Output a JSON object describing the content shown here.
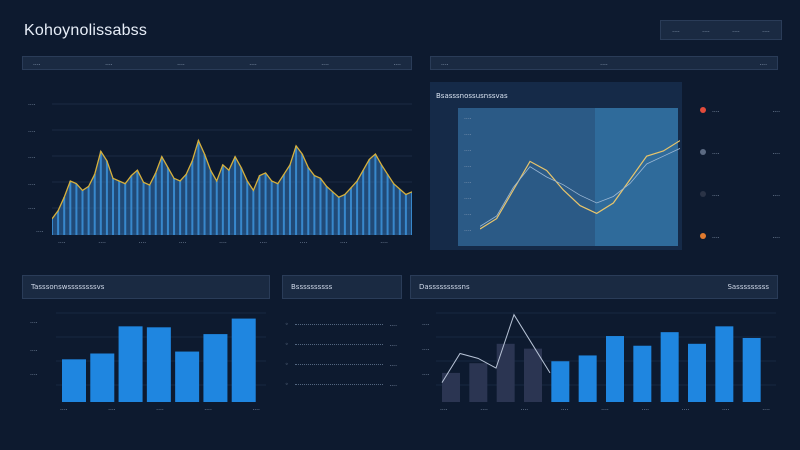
{
  "app": {
    "title": "Kohoynolissabss",
    "nav": [
      "....",
      "....",
      "....",
      "...."
    ]
  },
  "area_panel": {
    "tabs": [
      "....",
      "....",
      "....",
      "....",
      "....",
      "...."
    ],
    "y_ticks": [
      "....",
      "....",
      "....",
      "....",
      "....",
      "...."
    ],
    "x_ticks": [
      "....",
      "....",
      "....",
      "....",
      "....",
      "....",
      "....",
      "....",
      "...."
    ]
  },
  "right_panel": {
    "tabs": [
      "....",
      "....",
      "...."
    ],
    "header": "Bsasssnossusnssvas",
    "y_ticks": [
      "....",
      "....",
      "....",
      "....",
      "....",
      "....",
      "....",
      "...."
    ],
    "legend": [
      {
        "label": "....",
        "value": "....",
        "color": "#e24b3b"
      },
      {
        "label": "....",
        "value": "....",
        "color": "#5b6a82"
      },
      {
        "label": "....",
        "value": "....",
        "color": "#2a3346"
      },
      {
        "label": "....",
        "value": "....",
        "color": "#e07a2e"
      }
    ]
  },
  "bottom_left": {
    "header": "Tasssonswssssssssvs",
    "y_ticks": [
      "....",
      "....",
      "...."
    ],
    "x_ticks": [
      "....",
      "....",
      "....",
      "....",
      "...."
    ]
  },
  "bottom_middle": {
    "header": "Bssssssssss",
    "rows": [
      "....",
      "....",
      "....",
      "...."
    ]
  },
  "bottom_right": {
    "header": "Dasssssssssns",
    "header_right": "Sasssssssss",
    "y_ticks": [
      "....",
      "....",
      "...."
    ],
    "x_ticks": [
      "....",
      "....",
      "....",
      "....",
      "....",
      "....",
      "....",
      "....",
      "...."
    ]
  },
  "chart_data": [
    {
      "type": "area",
      "title": "",
      "xlabel": "",
      "ylabel": "",
      "ylim": [
        0,
        100
      ],
      "values": [
        12,
        18,
        28,
        40,
        38,
        33,
        36,
        45,
        62,
        55,
        42,
        40,
        38,
        44,
        48,
        39,
        37,
        46,
        58,
        50,
        42,
        40,
        45,
        55,
        70,
        60,
        48,
        40,
        52,
        48,
        58,
        50,
        40,
        33,
        44,
        46,
        40,
        38,
        45,
        52,
        66,
        60,
        50,
        44,
        42,
        36,
        32,
        28,
        30,
        35,
        40,
        48,
        56,
        60,
        52,
        45,
        38,
        34,
        30,
        32
      ]
    },
    {
      "type": "line",
      "title": "",
      "series": [
        {
          "values": [
            10,
            18,
            40,
            62,
            55,
            40,
            28,
            22,
            30,
            48,
            66,
            70,
            78
          ]
        },
        {
          "values": [
            12,
            20,
            42,
            58,
            50,
            44,
            36,
            30,
            35,
            45,
            60,
            66,
            72
          ]
        }
      ]
    },
    {
      "type": "bar",
      "title": "",
      "values": [
        44,
        50,
        78,
        77,
        52,
        70,
        86
      ],
      "ylim": [
        0,
        100
      ]
    },
    {
      "type": "bar",
      "title": "",
      "values": [
        30,
        40,
        60,
        55,
        42,
        48,
        68,
        58,
        72,
        60,
        78,
        66
      ],
      "ylim": [
        0,
        100
      ]
    }
  ]
}
